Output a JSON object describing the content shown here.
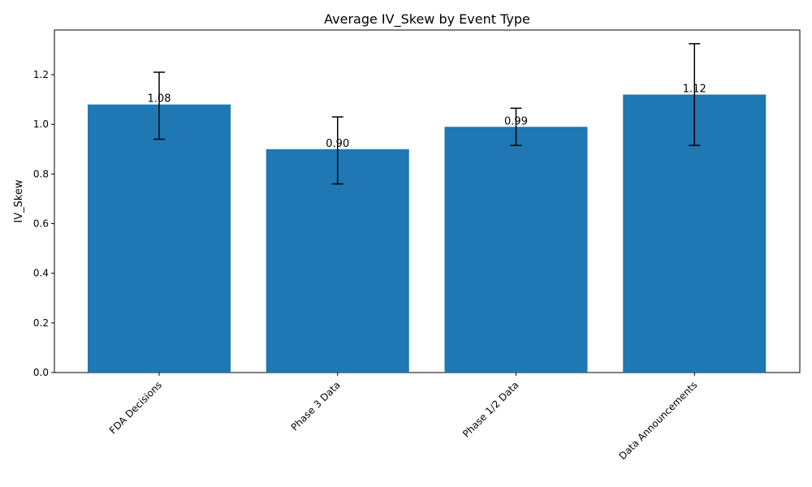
{
  "chart_data": {
    "type": "bar",
    "title": "Average IV_Skew by Event Type",
    "xlabel": "",
    "ylabel": "IV_Skew",
    "categories": [
      "FDA Decisions",
      "Phase 3 Data",
      "Phase 1/2 Data",
      "Data Announcements"
    ],
    "values": [
      1.08,
      0.9,
      0.99,
      1.12
    ],
    "value_labels": [
      "1.08",
      "0.90",
      "0.99",
      "1.12"
    ],
    "error_bars": [
      {
        "low": 0.94,
        "high": 1.21
      },
      {
        "low": 0.76,
        "high": 1.03
      },
      {
        "low": 0.915,
        "high": 1.065
      },
      {
        "low": 0.915,
        "high": 1.325
      }
    ],
    "y_ticks": [
      0.0,
      0.2,
      0.4,
      0.6,
      0.8,
      1.0,
      1.2
    ],
    "y_tick_labels": [
      "0.0",
      "0.2",
      "0.4",
      "0.6",
      "0.8",
      "1.0",
      "1.2"
    ],
    "ylim": [
      0,
      1.38
    ],
    "colors": {
      "bar": "#1f77b4",
      "error": "#000000",
      "axis": "#000000",
      "background": "#ffffff"
    },
    "grid": false
  }
}
